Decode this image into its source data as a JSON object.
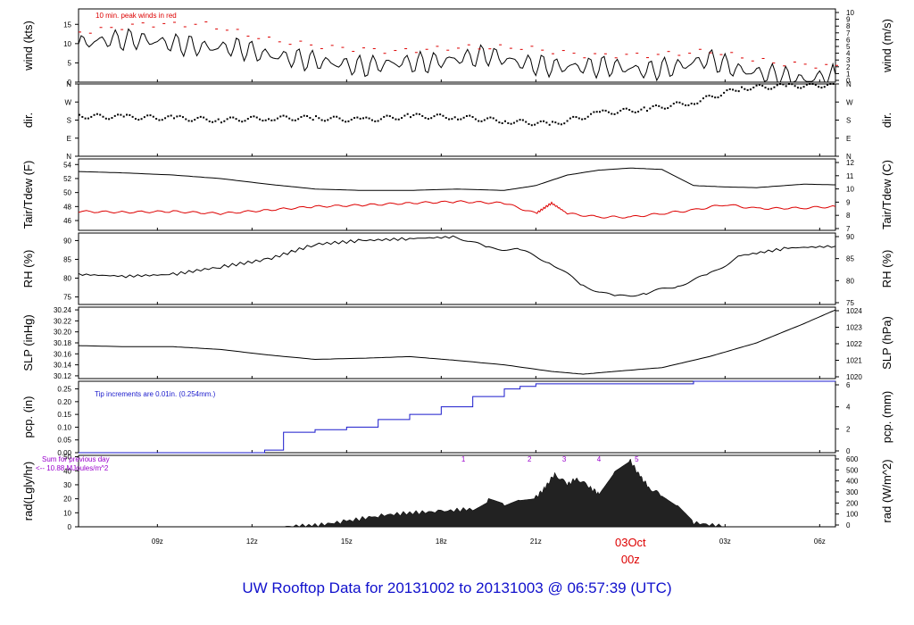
{
  "footer_title": "UW Rooftop Data for 20131002  to  20131003 @ 06:57:39  (UTC)",
  "colors": {
    "black": "#000000",
    "red": "#dd0000",
    "blue": "#1a1acc",
    "purple": "#9900cc",
    "frame": "#000000"
  },
  "chart_data": [
    {
      "type": "line",
      "panel": "wind",
      "ylabel_left": "wind (kts)",
      "ylabel_right": "wind (m/s)",
      "ylim": [
        0,
        19
      ],
      "yticks_left": [
        0,
        5,
        10,
        15
      ],
      "yticks_right": [
        0,
        1,
        2,
        3,
        4,
        5,
        6,
        7,
        8,
        9,
        10
      ],
      "annotation": "10 min. peak winds in red",
      "series": [
        {
          "color": "#000000",
          "x": [
            6.5,
            7.5,
            8.5,
            9.5,
            10.5,
            11.5,
            12.5,
            13.5,
            14.5,
            15.5,
            16.5,
            17.5,
            18.5,
            19.5,
            20.5,
            21.5,
            22.5,
            23.5,
            24.5,
            25.5,
            26.5,
            27.5,
            28.5,
            29.5,
            30.5
          ],
          "values": [
            10,
            11,
            11,
            10,
            9,
            9,
            7,
            6,
            5,
            4,
            5,
            5,
            6,
            7,
            5,
            4,
            4,
            4,
            3,
            4,
            6,
            3,
            2,
            0.5,
            2
          ]
        },
        {
          "color": "#dd0000",
          "x": [
            6.5,
            8.5,
            10.5,
            12.5,
            14.5,
            16.5,
            18.5,
            20.5,
            22.5,
            24.5,
            26.5,
            28.5,
            30.5
          ],
          "values": [
            13,
            15,
            15,
            11,
            9,
            8,
            9,
            9,
            7,
            7,
            8,
            5,
            4
          ]
        }
      ]
    },
    {
      "type": "scatter",
      "panel": "dir",
      "ylabel_left": "dir.",
      "ylabel_right": "dir.",
      "yticks_left": [
        "N",
        "E",
        "S",
        "W",
        "N"
      ],
      "yticks_right": [
        "N",
        "E",
        "S",
        "W",
        "N"
      ],
      "x": [
        6.5,
        8,
        9.5,
        11,
        12.5,
        14,
        15.5,
        17,
        18.5,
        20,
        21.5,
        23,
        24.5,
        26,
        27.5,
        29,
        30.5
      ],
      "values": [
        200,
        195,
        190,
        180,
        190,
        190,
        180,
        200,
        195,
        175,
        160,
        215,
        235,
        270,
        340,
        350,
        355
      ]
    },
    {
      "type": "line",
      "panel": "temperature",
      "ylabel_left": "Tair/Tdew (F)",
      "ylabel_right": "Tair/Tdew (C)",
      "ylim": [
        44.6,
        54.8
      ],
      "yticks_left": [
        46,
        48,
        50,
        52,
        54
      ],
      "yticks_right": [
        7,
        8,
        9,
        10,
        11,
        12
      ],
      "series": [
        {
          "color": "#000000",
          "x": [
            6.5,
            8,
            9.5,
            11,
            12.5,
            14,
            15.5,
            17,
            18.5,
            20,
            21,
            22,
            23,
            24,
            25,
            26,
            27,
            28,
            29.5,
            30.5
          ],
          "values": [
            53,
            52.8,
            52.5,
            52,
            51.2,
            50.5,
            50.3,
            50.3,
            50.5,
            50.3,
            51,
            52.5,
            53.2,
            53.5,
            53.3,
            51,
            50.8,
            50.7,
            51.2,
            51.1
          ]
        },
        {
          "color": "#dd0000",
          "x": [
            6.5,
            8,
            9.5,
            11,
            12.5,
            14,
            15.5,
            17,
            18.5,
            20,
            21,
            21.5,
            22,
            23,
            24,
            25,
            26,
            27,
            28,
            29.5,
            30.5
          ],
          "values": [
            47.3,
            47.2,
            47.3,
            47,
            47.5,
            48,
            48.2,
            48.5,
            48.7,
            48.5,
            47,
            48.5,
            47,
            46.5,
            46.5,
            47,
            47.5,
            48.3,
            47.7,
            47.8,
            48
          ]
        }
      ]
    },
    {
      "type": "line",
      "panel": "rh",
      "ylabel_left": "RH (%)",
      "ylabel_right": "RH (%)",
      "ylim": [
        73,
        92
      ],
      "yticks_left": [
        75,
        80,
        85,
        90
      ],
      "yticks_right": [
        75,
        80,
        85,
        90
      ],
      "series": [
        {
          "color": "#000000",
          "x": [
            6.5,
            8,
            9.5,
            11,
            12.5,
            14,
            15.5,
            17,
            18.5,
            19.5,
            20.5,
            21.5,
            22.5,
            23.5,
            24.5,
            25.5,
            26.5,
            27.5,
            29,
            30.5
          ],
          "values": [
            81,
            80.5,
            81,
            83,
            85,
            89,
            90,
            90.5,
            91,
            88,
            87.5,
            84,
            78,
            75,
            76,
            78,
            81,
            86,
            88,
            88.5
          ]
        }
      ]
    },
    {
      "type": "line",
      "panel": "pressure",
      "ylabel_left": "SLP (inHg)",
      "ylabel_right": "SLP (hPa)",
      "ylim": [
        30.115,
        30.245
      ],
      "yticks_left": [
        30.12,
        30.14,
        30.16,
        30.18,
        30.2,
        30.22,
        30.24
      ],
      "yticks_right": [
        1020,
        1021,
        1022,
        1023,
        1024
      ],
      "series": [
        {
          "color": "#000000",
          "x": [
            6.5,
            8,
            9.5,
            11,
            12.5,
            14,
            15.5,
            17,
            18.5,
            20,
            21.5,
            22.5,
            23.5,
            25,
            26.5,
            28,
            29.5,
            30.5
          ],
          "values": [
            30.175,
            30.173,
            30.173,
            30.168,
            30.158,
            30.15,
            30.152,
            30.155,
            30.148,
            30.14,
            30.128,
            30.123,
            30.128,
            30.135,
            30.155,
            30.18,
            30.215,
            30.24
          ]
        }
      ]
    },
    {
      "type": "line",
      "panel": "precipitation",
      "ylabel_left": "pcp. (in)",
      "ylabel_right": "pcp. (mm)",
      "ylim": [
        0,
        0.28
      ],
      "yticks_left": [
        0.0,
        0.05,
        0.1,
        0.15,
        0.2,
        0.25
      ],
      "yticks_right": [
        0,
        2,
        4,
        6
      ],
      "annotation": "Tip increments are 0.01in. (0.254mm.)",
      "series": [
        {
          "color": "#1a1acc",
          "x": [
            6.5,
            12,
            12.4,
            13,
            14,
            15,
            16,
            17,
            18,
            19,
            20,
            20.5,
            21,
            22,
            26,
            30.5
          ],
          "values": [
            0,
            0,
            0.01,
            0.08,
            0.09,
            0.1,
            0.13,
            0.15,
            0.18,
            0.22,
            0.25,
            0.26,
            0.27,
            0.27,
            0.28,
            0.28
          ]
        }
      ]
    },
    {
      "type": "area",
      "panel": "radiation",
      "ylabel_left": "rad(Lgly/hr)",
      "ylabel_right": "rad (W/m^2)",
      "ylim": [
        0,
        51
      ],
      "yticks_left": [
        0,
        10,
        20,
        30,
        40,
        50
      ],
      "yticks_right": [
        0,
        100,
        200,
        300,
        400,
        500,
        600
      ],
      "annotation_lines": [
        "Sum for previous day",
        "<-- 10.88 MJoules/m^2"
      ],
      "markers": [
        "1",
        "2",
        "3",
        "4",
        "5"
      ],
      "x": [
        6.5,
        13,
        14,
        15,
        16,
        17,
        18,
        19,
        19.5,
        20,
        20.5,
        21,
        21.3,
        21.6,
        22,
        22.3,
        22.7,
        23,
        23.5,
        24,
        24.3,
        24.6,
        25,
        25.5,
        26,
        27,
        30.5
      ],
      "values": [
        0,
        0,
        1,
        4,
        8,
        10,
        11,
        13,
        19,
        15,
        20,
        21,
        28,
        38,
        30,
        35,
        28,
        24,
        40,
        47,
        36,
        28,
        22,
        14,
        3,
        0,
        0
      ]
    }
  ],
  "x_axis": {
    "tick_labels": [
      "09z",
      "12z",
      "15z",
      "18z",
      "21z",
      "03z",
      "06z"
    ],
    "day_label": "03Oct",
    "day_sublabel": "00z"
  }
}
